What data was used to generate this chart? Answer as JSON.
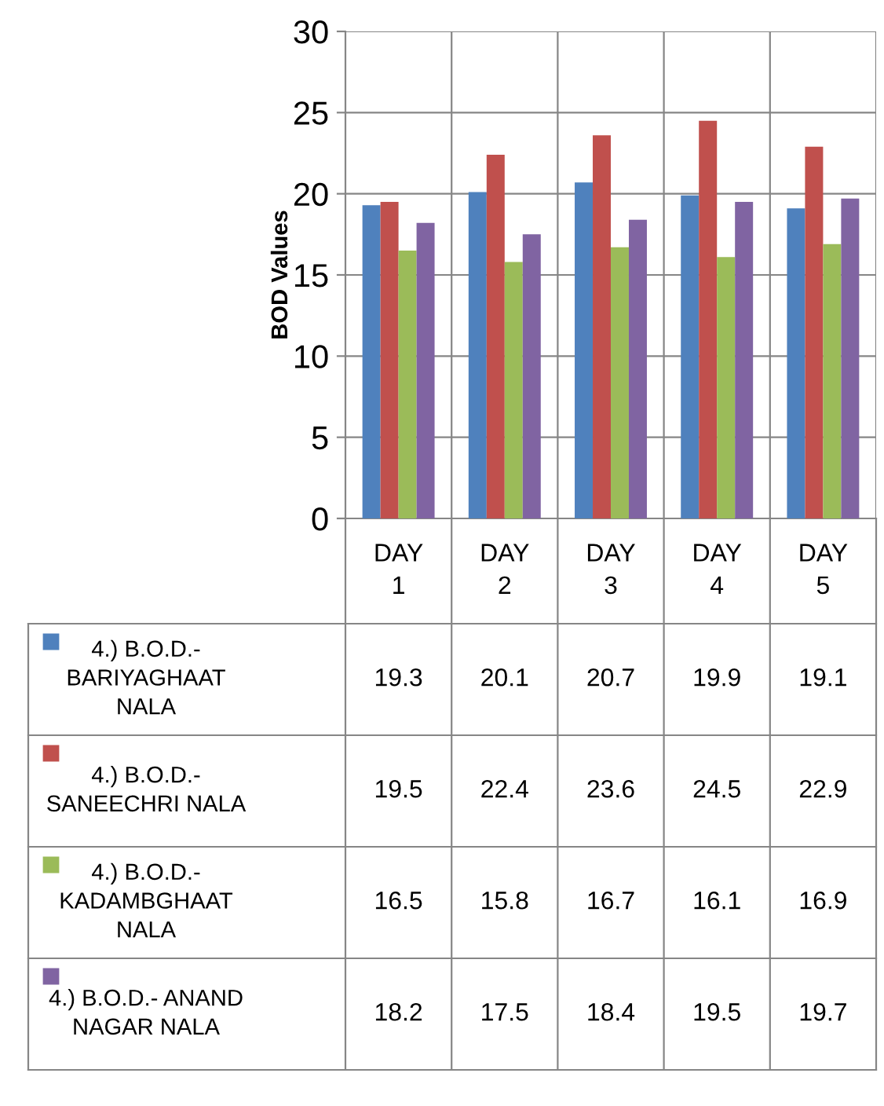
{
  "chart_data": {
    "type": "bar",
    "ylabel": "BOD Values",
    "categories": [
      "DAY\n1",
      "DAY\n2",
      "DAY\n3",
      "DAY\n4",
      "DAY\n5"
    ],
    "series": [
      {
        "name": "4.) B.O.D.-\nBARIYAGHAAT\nNALA",
        "color": "#4f81bd",
        "values": [
          19.3,
          20.1,
          20.7,
          19.9,
          19.1
        ]
      },
      {
        "name": "4.) B.O.D.-\nSANEECHRI NALA",
        "color": "#c0504d",
        "values": [
          19.5,
          22.4,
          23.6,
          24.5,
          22.9
        ]
      },
      {
        "name": "4.) B.O.D.-\nKADAMBGHAAT\nNALA",
        "color": "#9bbb59",
        "values": [
          16.5,
          15.8,
          16.7,
          16.1,
          16.9
        ]
      },
      {
        "name": "4.) B.O.D.- ANAND\nNAGAR NALA",
        "color": "#8064a2",
        "values": [
          18.2,
          17.5,
          18.4,
          19.5,
          19.7
        ]
      }
    ],
    "ylim": [
      0,
      30
    ],
    "yticks": [
      0,
      5,
      10,
      15,
      20,
      25,
      30
    ],
    "grid": "y",
    "data_labels": true,
    "legend": "bottom"
  }
}
